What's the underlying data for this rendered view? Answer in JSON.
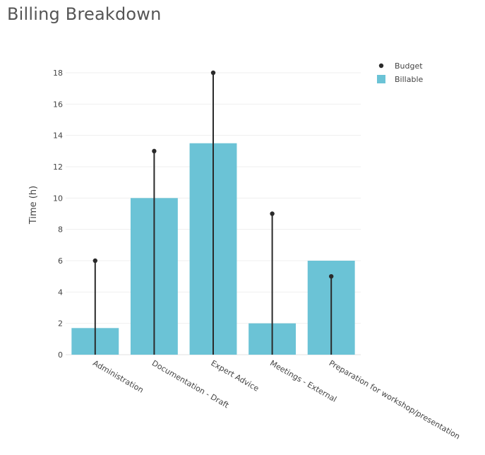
{
  "page": {
    "title": "Billing Breakdown"
  },
  "chart_data": {
    "type": "bar",
    "categories": [
      "Administration",
      "Documentation - Draft",
      "Expert Advice",
      "Meetings - External",
      "Preparation for workshop/presentation"
    ],
    "series": [
      {
        "name": "Billable",
        "kind": "bar",
        "values": [
          1.7,
          10,
          13.5,
          2,
          6
        ],
        "color": "#6bc3d6"
      },
      {
        "name": "Budget",
        "kind": "lollipop",
        "values": [
          6,
          13,
          18,
          9,
          5
        ],
        "color": "#2a2a2a"
      }
    ],
    "xlabel": "",
    "ylabel": "Time (h)",
    "ylim": [
      0,
      18
    ],
    "yticks": [
      0,
      2,
      4,
      6,
      8,
      10,
      12,
      14,
      16,
      18
    ],
    "grid": true,
    "legend_position": "top-right"
  }
}
